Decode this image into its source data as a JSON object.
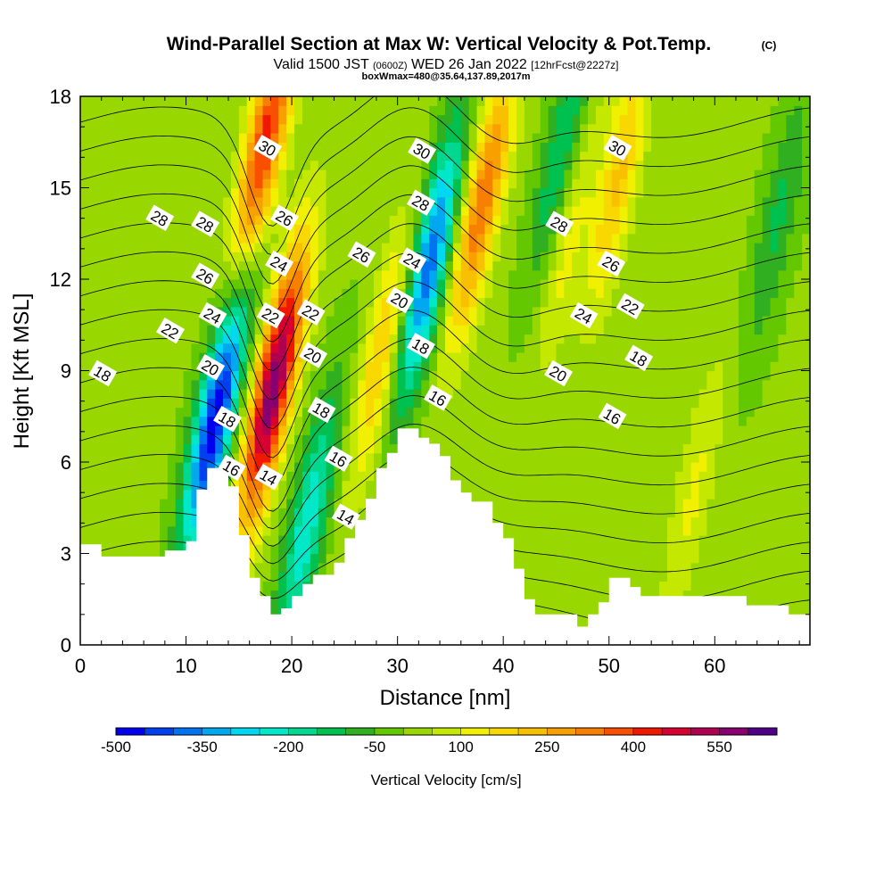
{
  "chart_data": {
    "type": "heatmap",
    "title": "Wind-Parallel Section at Max W: Vertical Velocity & Pot.Temp.",
    "title_mark": "(C)",
    "subtitle": {
      "valid_prefix": "Valid 1500 JST",
      "utc": "(0600Z)",
      "date": "WED 26 Jan 2022",
      "forecast": "[12hrFcst@2227z]",
      "box_info": "boxWmax=480@35.64,137.89,2017m"
    },
    "xlabel": "Distance [nm]",
    "ylabel": "Height [Kft MSL]",
    "xlim": [
      0,
      69
    ],
    "ylim": [
      0,
      18
    ],
    "x_ticks": [
      0,
      10,
      20,
      30,
      40,
      50,
      60
    ],
    "y_ticks": [
      0,
      3,
      6,
      9,
      12,
      15,
      18
    ],
    "colorbar": {
      "label": "Vertical Velocity [cm/s]",
      "tick_labels": [
        "-500",
        "-350",
        "-200",
        "-50",
        "100",
        "250",
        "400",
        "550"
      ],
      "levels": [
        -500,
        -450,
        -400,
        -350,
        -300,
        -250,
        -200,
        -150,
        -100,
        -50,
        0,
        50,
        100,
        150,
        200,
        250,
        300,
        350,
        400,
        450,
        500,
        550,
        600
      ],
      "colors": [
        "#0000f0",
        "#0040f0",
        "#0074f0",
        "#00a8f0",
        "#00d8f0",
        "#00e8c8",
        "#00d890",
        "#00c050",
        "#30b020",
        "#64c800",
        "#98d800",
        "#c4e800",
        "#f0f000",
        "#f8d800",
        "#f8c000",
        "#f8a000",
        "#f88000",
        "#f85000",
        "#f01800",
        "#d80030",
        "#b00050",
        "#880070",
        "#500088"
      ]
    },
    "terrain_kft": [
      [
        0,
        3.3
      ],
      [
        2,
        3.3
      ],
      [
        2,
        2.9
      ],
      [
        8,
        2.9
      ],
      [
        8,
        3.1
      ],
      [
        10,
        3.1
      ],
      [
        10,
        3.4
      ],
      [
        11,
        3.4
      ],
      [
        11,
        5.1
      ],
      [
        12,
        5.1
      ],
      [
        12,
        5.8
      ],
      [
        14,
        5.8
      ],
      [
        14,
        5.2
      ],
      [
        15,
        5.2
      ],
      [
        15,
        3.6
      ],
      [
        16,
        3.6
      ],
      [
        16,
        2.2
      ],
      [
        17,
        2.2
      ],
      [
        17,
        1.6
      ],
      [
        18,
        1.6
      ],
      [
        18,
        1.0
      ],
      [
        19,
        1.0
      ],
      [
        19,
        1.2
      ],
      [
        20,
        1.2
      ],
      [
        20,
        1.6
      ],
      [
        21,
        1.6
      ],
      [
        21,
        2.0
      ],
      [
        22,
        2.0
      ],
      [
        22,
        2.3
      ],
      [
        24,
        2.3
      ],
      [
        24,
        2.7
      ],
      [
        25,
        2.7
      ],
      [
        25,
        3.5
      ],
      [
        26,
        3.5
      ],
      [
        26,
        4.1
      ],
      [
        27,
        4.1
      ],
      [
        27,
        4.8
      ],
      [
        28,
        4.8
      ],
      [
        28,
        5.8
      ],
      [
        29,
        5.8
      ],
      [
        29,
        6.3
      ],
      [
        30,
        6.3
      ],
      [
        30,
        7.1
      ],
      [
        32,
        7.1
      ],
      [
        32,
        6.8
      ],
      [
        33,
        6.8
      ],
      [
        33,
        6.6
      ],
      [
        34,
        6.6
      ],
      [
        34,
        6.2
      ],
      [
        35,
        6.2
      ],
      [
        35,
        5.4
      ],
      [
        36,
        5.4
      ],
      [
        36,
        5.0
      ],
      [
        37,
        5.0
      ],
      [
        37,
        4.7
      ],
      [
        39,
        4.7
      ],
      [
        39,
        4.0
      ],
      [
        40,
        4.0
      ],
      [
        40,
        3.5
      ],
      [
        41,
        3.5
      ],
      [
        41,
        2.5
      ],
      [
        42,
        2.5
      ],
      [
        42,
        1.5
      ],
      [
        43,
        1.5
      ],
      [
        43,
        1.0
      ],
      [
        47,
        1.0
      ],
      [
        47,
        0.6
      ],
      [
        48,
        0.6
      ],
      [
        48,
        1.0
      ],
      [
        49,
        1.0
      ],
      [
        49,
        1.4
      ],
      [
        50,
        1.4
      ],
      [
        50,
        2.2
      ],
      [
        52,
        2.2
      ],
      [
        52,
        1.9
      ],
      [
        53,
        1.9
      ],
      [
        53,
        1.6
      ],
      [
        63,
        1.6
      ],
      [
        63,
        1.3
      ],
      [
        67,
        1.3
      ],
      [
        67,
        1.0
      ],
      [
        69,
        1.0
      ]
    ],
    "w_features": [
      {
        "x": 12.8,
        "y": 7.5,
        "w": -500
      },
      {
        "x": 18.3,
        "y": 8.5,
        "w": 580
      },
      {
        "x": 17.5,
        "y": 16.5,
        "w": 420
      },
      {
        "x": 21.5,
        "y": 4.0,
        "w": -250
      },
      {
        "x": 28.5,
        "y": 9.5,
        "w": 200
      },
      {
        "x": 33.0,
        "y": 12.5,
        "w": -400
      },
      {
        "x": 38.0,
        "y": 14.5,
        "w": 330
      },
      {
        "x": 46.0,
        "y": 13.5,
        "w": 130
      },
      {
        "x": 51.0,
        "y": 15.5,
        "w": 200
      },
      {
        "x": 45.5,
        "y": 16.0,
        "w": -180
      },
      {
        "x": 66.0,
        "y": 14.0,
        "w": -120
      },
      {
        "x": 58.0,
        "y": 5.0,
        "w": 100
      }
    ],
    "pot_temp_levels_c": [
      13,
      14,
      15,
      16,
      17,
      18,
      19,
      20,
      21,
      22,
      23,
      24,
      25,
      26,
      27,
      28,
      29,
      30
    ],
    "contour_labels": [
      {
        "text": "30",
        "x": 17.7,
        "y": 16.3
      },
      {
        "text": "28",
        "x": 7.5,
        "y": 14.0
      },
      {
        "text": "28",
        "x": 11.8,
        "y": 13.8
      },
      {
        "text": "26",
        "x": 19.3,
        "y": 14.0
      },
      {
        "text": "24",
        "x": 18.8,
        "y": 12.5
      },
      {
        "text": "26",
        "x": 11.8,
        "y": 12.1
      },
      {
        "text": "22",
        "x": 8.5,
        "y": 10.3
      },
      {
        "text": "24",
        "x": 12.5,
        "y": 10.8
      },
      {
        "text": "22",
        "x": 18.0,
        "y": 10.8
      },
      {
        "text": "22",
        "x": 21.8,
        "y": 10.9
      },
      {
        "text": "20",
        "x": 12.3,
        "y": 9.1
      },
      {
        "text": "20",
        "x": 22.0,
        "y": 9.5
      },
      {
        "text": "18",
        "x": 2.1,
        "y": 8.9
      },
      {
        "text": "18",
        "x": 13.9,
        "y": 7.4
      },
      {
        "text": "18",
        "x": 22.8,
        "y": 7.7
      },
      {
        "text": "16",
        "x": 14.3,
        "y": 5.8
      },
      {
        "text": "16",
        "x": 24.4,
        "y": 6.1
      },
      {
        "text": "14",
        "x": 17.8,
        "y": 5.5
      },
      {
        "text": "14",
        "x": 25.1,
        "y": 4.2
      },
      {
        "text": "26",
        "x": 26.6,
        "y": 12.8
      },
      {
        "text": "20",
        "x": 30.2,
        "y": 11.3
      },
      {
        "text": "24",
        "x": 31.4,
        "y": 12.6
      },
      {
        "text": "18",
        "x": 32.2,
        "y": 9.8
      },
      {
        "text": "16",
        "x": 33.8,
        "y": 8.1
      },
      {
        "text": "30",
        "x": 32.3,
        "y": 16.2
      },
      {
        "text": "28",
        "x": 32.2,
        "y": 14.5
      },
      {
        "text": "28",
        "x": 45.3,
        "y": 13.8
      },
      {
        "text": "30",
        "x": 50.8,
        "y": 16.3
      },
      {
        "text": "26",
        "x": 50.2,
        "y": 12.5
      },
      {
        "text": "24",
        "x": 47.6,
        "y": 10.8
      },
      {
        "text": "22",
        "x": 52.0,
        "y": 11.1
      },
      {
        "text": "20",
        "x": 45.2,
        "y": 8.9
      },
      {
        "text": "18",
        "x": 52.8,
        "y": 9.4
      },
      {
        "text": "16",
        "x": 50.3,
        "y": 7.5
      }
    ]
  }
}
